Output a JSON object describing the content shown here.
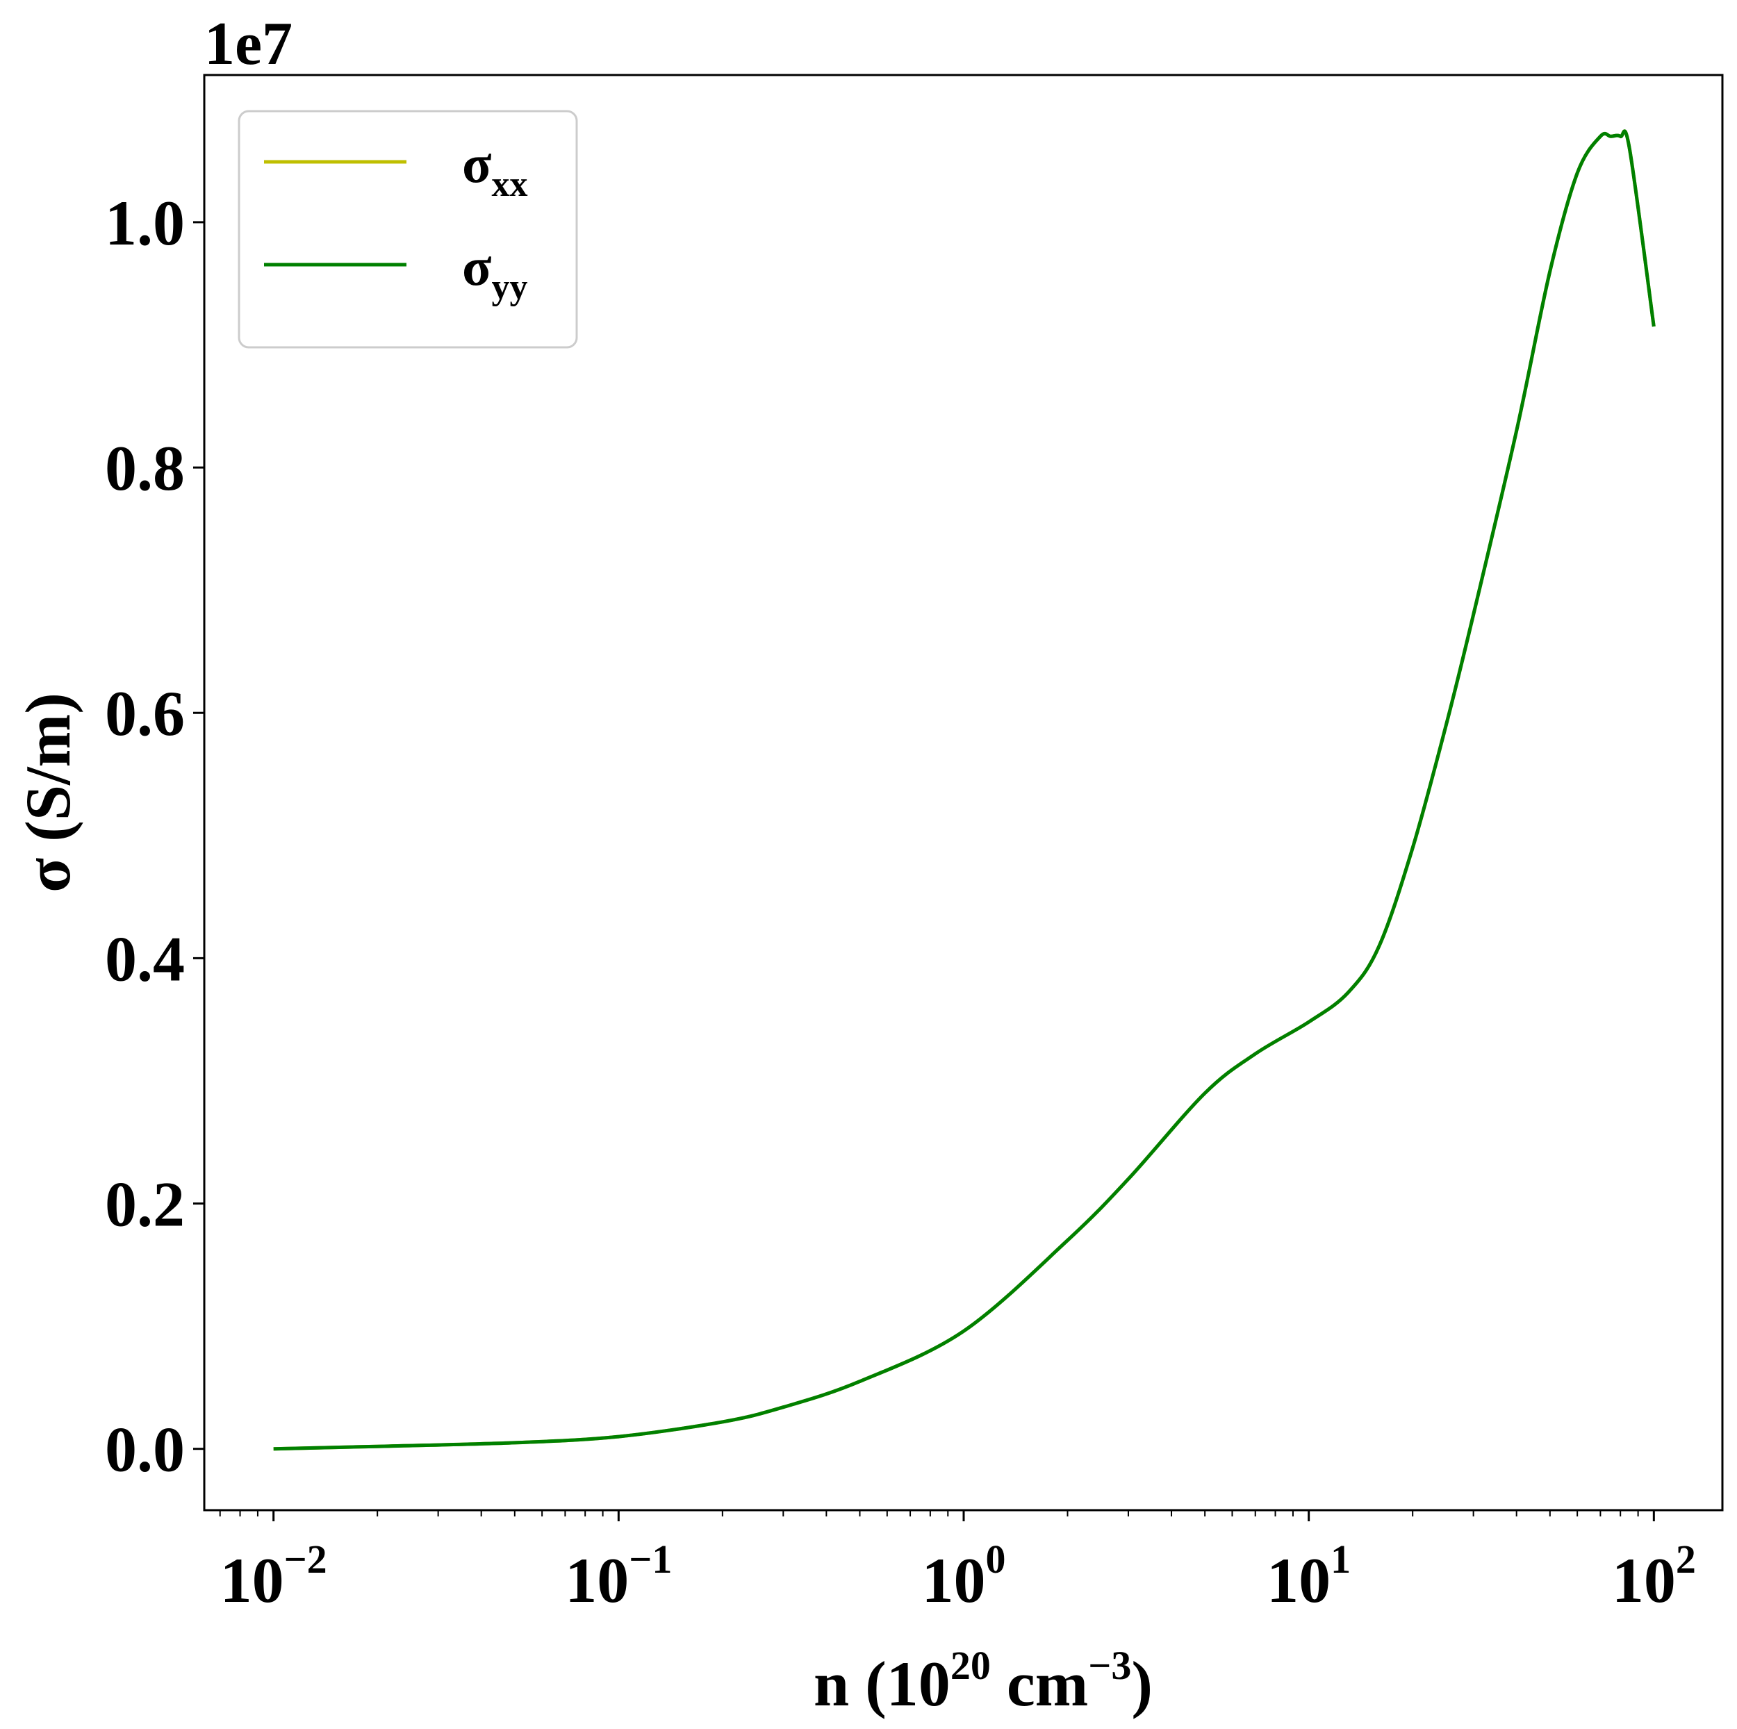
{
  "chart_data": {
    "type": "line",
    "xscale": "log",
    "xlim": [
      0.0063,
      158
    ],
    "ylim": [
      -0.05,
      1.12
    ],
    "y_offset_text": "1e7",
    "xlabel": {
      "main": "n (10",
      "sup1": "20",
      "mid": " cm",
      "sup2": "−3",
      "end": ")"
    },
    "ylabel": "σ (S/m)",
    "x_ticks": [
      {
        "value": 0.01,
        "base": "10",
        "exp": "−2"
      },
      {
        "value": 0.1,
        "base": "10",
        "exp": "−1"
      },
      {
        "value": 1,
        "base": "10",
        "exp": "0"
      },
      {
        "value": 10,
        "base": "10",
        "exp": "1"
      },
      {
        "value": 100,
        "base": "10",
        "exp": "2"
      }
    ],
    "y_ticks": [
      {
        "value": 0.0,
        "label": "0.0"
      },
      {
        "value": 0.2,
        "label": "0.2"
      },
      {
        "value": 0.4,
        "label": "0.4"
      },
      {
        "value": 0.6,
        "label": "0.6"
      },
      {
        "value": 0.8,
        "label": "0.8"
      },
      {
        "value": 1.0,
        "label": "1.0"
      }
    ],
    "legend_position": "upper-left",
    "series": [
      {
        "name": "σxx",
        "name_base": "σ",
        "name_sub": "xx",
        "color": "#bfbf00",
        "x": [
          0.01,
          0.02,
          0.05,
          0.1,
          0.2,
          0.3,
          0.5,
          1,
          2,
          3,
          5,
          7,
          10,
          13,
          16,
          20,
          25,
          30,
          40,
          50,
          60,
          70,
          75,
          80,
          85,
          100
        ],
        "y": [
          0.0,
          0.002,
          0.005,
          0.01,
          0.022,
          0.034,
          0.055,
          0.096,
          0.17,
          0.22,
          0.29,
          0.322,
          0.348,
          0.372,
          0.41,
          0.49,
          0.59,
          0.68,
          0.83,
          0.96,
          1.04,
          1.07,
          1.07,
          1.07,
          1.06,
          0.915
        ]
      },
      {
        "name": "σyy",
        "name_base": "σ",
        "name_sub": "yy",
        "color": "#008000",
        "x": [
          0.01,
          0.02,
          0.05,
          0.1,
          0.2,
          0.3,
          0.5,
          1,
          2,
          3,
          5,
          7,
          10,
          13,
          16,
          20,
          25,
          30,
          40,
          50,
          60,
          70,
          75,
          80,
          85,
          100
        ],
        "y": [
          0.0,
          0.002,
          0.005,
          0.01,
          0.022,
          0.034,
          0.055,
          0.096,
          0.17,
          0.22,
          0.29,
          0.322,
          0.348,
          0.372,
          0.41,
          0.49,
          0.59,
          0.68,
          0.83,
          0.96,
          1.04,
          1.07,
          1.07,
          1.07,
          1.06,
          0.915
        ]
      }
    ]
  }
}
